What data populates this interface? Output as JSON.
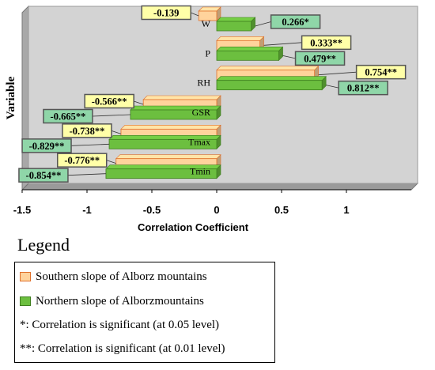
{
  "chart_data": {
    "type": "bar",
    "orientation": "horizontal",
    "xlabel": "Correlation Coefficient",
    "ylabel": "Variable",
    "xlim": [
      -1.5,
      1.5
    ],
    "xticks": [
      -1.5,
      -1,
      -0.5,
      0,
      0.5,
      1
    ],
    "xtick_labels": [
      "-1.5",
      "-1",
      "-0.5",
      "0",
      "0.5",
      "1"
    ],
    "categories": [
      "W",
      "P",
      "RH",
      "GSR",
      "Tmax",
      "Tmin"
    ],
    "series": [
      {
        "name": "Southern slope of Alborz mountains",
        "values": [
          -0.139,
          0.333,
          0.754,
          -0.566,
          -0.738,
          -0.776
        ],
        "labels": [
          "-0.139",
          "0.333**",
          "0.754**",
          "-0.566**",
          "-0.738**",
          "-0.776**"
        ],
        "color": "#ffd39c",
        "label_bg": "#ffffa8"
      },
      {
        "name": "Northern slope of Alborzmountains",
        "values": [
          0.266,
          0.479,
          0.812,
          -0.665,
          -0.829,
          -0.854
        ],
        "labels": [
          "0.266*",
          "0.479**",
          "0.812**",
          "-0.665**",
          "-0.829**",
          "-0.854**"
        ],
        "color": "#6cbf3f",
        "label_bg": "#8fd6a8"
      }
    ],
    "grid": false
  },
  "legend": {
    "title": "Legend",
    "items": [
      {
        "label": "Southern slope of Alborz mountains",
        "swatch": "#ffd39c",
        "border": "#e0712c"
      },
      {
        "label": "Northern slope of Alborzmountains",
        "swatch": "#6cbf3f",
        "border": "#3f7f1f"
      }
    ],
    "notes": [
      "*: Correlation is significant (at 0.05 level)",
      "**: Correlation is significant (at 0.01 level)"
    ]
  }
}
